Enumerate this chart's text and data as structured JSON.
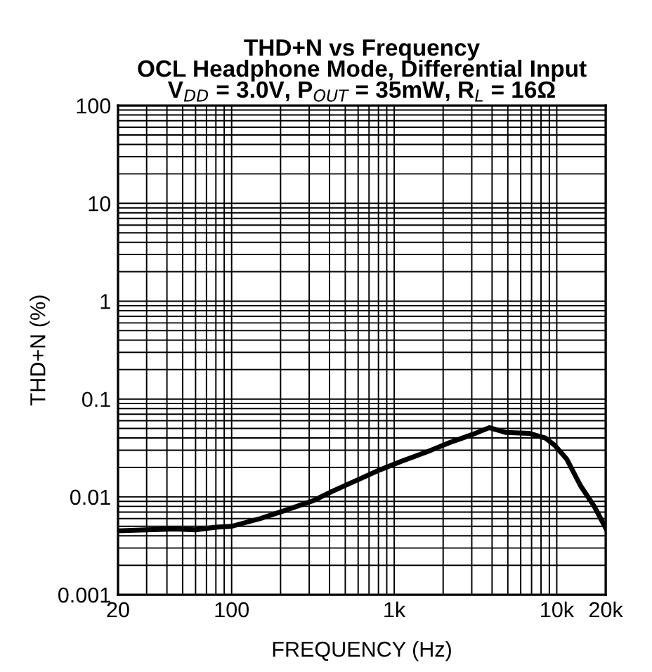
{
  "chart_data": {
    "type": "line",
    "title": "THD+N vs Frequency\nOCL Headphone Mode, Differential Input\nV$_{DD}$ = 3.0V, P$_{OUT}$ = 35mW, R$_{L}$ = 16Ω",
    "xlabel": "FREQUENCY (Hz)",
    "ylabel": "THD+N (%)",
    "log": "xy",
    "grid": true,
    "xlim": [
      20,
      20000
    ],
    "ylim": [
      0.001,
      100
    ],
    "xticks": [
      20,
      100,
      {
        "value": 1000,
        "label": "1k"
      },
      {
        "value": 10000,
        "label": "10k"
      },
      {
        "value": 20000,
        "label": "20k"
      }
    ],
    "yticks": [
      0.001,
      0.01,
      0.1,
      1,
      10,
      100
    ],
    "series": [
      {
        "color": "#000000",
        "x": [
          20,
          30,
          45,
          60,
          80,
          100,
          150,
          215,
          320,
          417,
          600,
          811,
          1100,
          1570,
          2200,
          3050,
          3850,
          4850,
          6760,
          8500,
          9740,
          11500,
          14000,
          17000,
          20000
        ],
        "values": [
          0.0045,
          0.0046,
          0.0047,
          0.0046,
          0.0049,
          0.005,
          0.006,
          0.0073,
          0.0092,
          0.0114,
          0.015,
          0.0188,
          0.023,
          0.0286,
          0.036,
          0.0436,
          0.051,
          0.0455,
          0.0446,
          0.04,
          0.0335,
          0.0244,
          0.013,
          0.008,
          0.0048
        ]
      }
    ]
  }
}
